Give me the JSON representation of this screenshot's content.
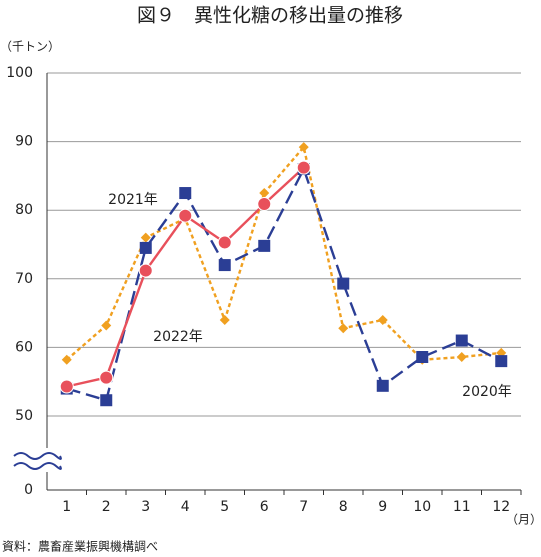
{
  "chart_data": {
    "type": "line",
    "title": "図９　異性化糖の移出量の推移",
    "y_unit": "（千トン）",
    "x_unit": "（月）",
    "source": "資料：農畜産業振興機構調べ",
    "categories": [
      "1",
      "2",
      "3",
      "4",
      "5",
      "6",
      "7",
      "8",
      "9",
      "10",
      "11",
      "12"
    ],
    "series": [
      {
        "name": "2020年",
        "color": "#f0a020",
        "dash": "4 3",
        "marker": "diamond",
        "values": [
          58.2,
          63.2,
          76,
          78.8,
          64,
          82.5,
          89.2,
          62.8,
          64,
          58.2,
          58.6,
          59.2
        ]
      },
      {
        "name": "2021年",
        "color": "#2b3e95",
        "dash": "14 6",
        "marker": "square",
        "values": [
          54,
          52.3,
          74.5,
          82.5,
          72,
          74.8,
          86,
          69.3,
          54.4,
          58.6,
          61,
          58
        ]
      },
      {
        "name": "2022年",
        "color": "#e8505b",
        "dash": "none",
        "marker": "circle",
        "values": [
          54.3,
          55.6,
          71.2,
          79.2,
          75.3,
          80.9,
          86.2,
          null,
          null,
          null,
          null,
          null
        ]
      }
    ],
    "ylim": [
      0,
      100
    ],
    "ybreak": [
      0,
      50
    ],
    "yticks": [
      0,
      50,
      60,
      70,
      80,
      90,
      100
    ],
    "grid": true
  }
}
